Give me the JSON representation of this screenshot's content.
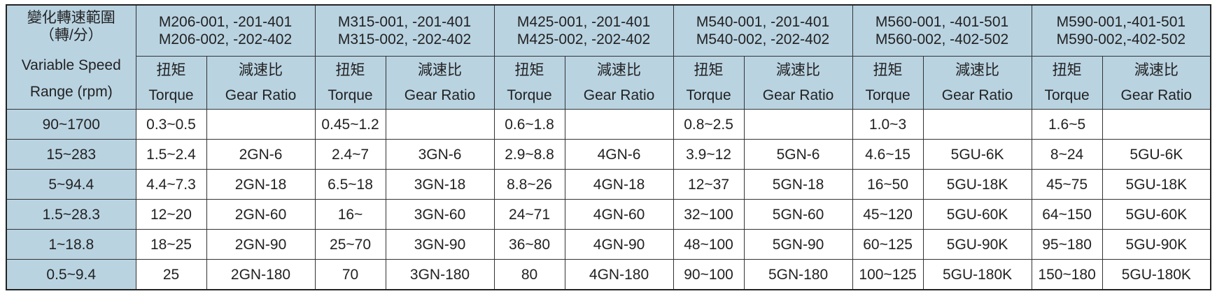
{
  "header": {
    "range_label_zh": "變化轉速範圍",
    "range_unit_zh": "（轉/分）",
    "range_label_en": "Variable Speed",
    "range_unit_en": "Range (rpm)",
    "torque_zh": "扭矩",
    "torque_en": "Torque",
    "ratio_zh": "減速比",
    "ratio_en": "Gear Ratio",
    "models": [
      {
        "line1": "M206-001, -201-401",
        "line2": "M206-002, -202-402"
      },
      {
        "line1": "M315-001, -201-401",
        "line2": "M315-002, -202-402"
      },
      {
        "line1": "M425-001, -201-401",
        "line2": "M425-002, -202-402"
      },
      {
        "line1": "M540-001, -201-401",
        "line2": "M540-002, -202-402"
      },
      {
        "line1": "M560-001, -401-501",
        "line2": "M560-002, -402-502"
      },
      {
        "line1": "M590-001,-401-501",
        "line2": "M590-002,-402-502"
      }
    ]
  },
  "colors": {
    "header_bg": "#b9d3e1",
    "border": "#333333"
  },
  "rows": [
    {
      "speed": "90~1700",
      "cells": [
        [
          "0.3~0.5",
          ""
        ],
        [
          "0.45~1.2",
          ""
        ],
        [
          "0.6~1.8",
          ""
        ],
        [
          "0.8~2.5",
          ""
        ],
        [
          "1.0~3",
          ""
        ],
        [
          "1.6~5",
          ""
        ]
      ]
    },
    {
      "speed": "15~283",
      "cells": [
        [
          "1.5~2.4",
          "2GN-6"
        ],
        [
          "2.4~7",
          "3GN-6"
        ],
        [
          "2.9~8.8",
          "4GN-6"
        ],
        [
          "3.9~12",
          "5GN-6"
        ],
        [
          "4.6~15",
          "5GU-6K"
        ],
        [
          "8~24",
          "5GU-6K"
        ]
      ]
    },
    {
      "speed": "5~94.4",
      "cells": [
        [
          "4.4~7.3",
          "2GN-18"
        ],
        [
          "6.5~18",
          "3GN-18"
        ],
        [
          "8.8~26",
          "4GN-18"
        ],
        [
          "12~37",
          "5GN-18"
        ],
        [
          "16~50",
          "5GU-18K"
        ],
        [
          "45~75",
          "5GU-18K"
        ]
      ]
    },
    {
      "speed": "1.5~28.3",
      "cells": [
        [
          "12~20",
          "2GN-60"
        ],
        [
          "16~",
          "3GN-60"
        ],
        [
          "24~71",
          "4GN-60"
        ],
        [
          "32~100",
          "5GN-60"
        ],
        [
          "45~120",
          "5GU-60K"
        ],
        [
          "64~150",
          "5GU-60K"
        ]
      ]
    },
    {
      "speed": "1~18.8",
      "cells": [
        [
          "18~25",
          "2GN-90"
        ],
        [
          "25~70",
          "3GN-90"
        ],
        [
          "36~80",
          "4GN-90"
        ],
        [
          "48~100",
          "5GN-90"
        ],
        [
          "60~125",
          "5GU-90K"
        ],
        [
          "95~180",
          "5GU-90K"
        ]
      ]
    },
    {
      "speed": "0.5~9.4",
      "cells": [
        [
          "25",
          "2GN-180"
        ],
        [
          "70",
          "3GN-180"
        ],
        [
          "80",
          "4GN-180"
        ],
        [
          "90~100",
          "5GN-180"
        ],
        [
          "100~125",
          "5GU-180K"
        ],
        [
          "150~180",
          "5GU-180K"
        ]
      ]
    }
  ]
}
